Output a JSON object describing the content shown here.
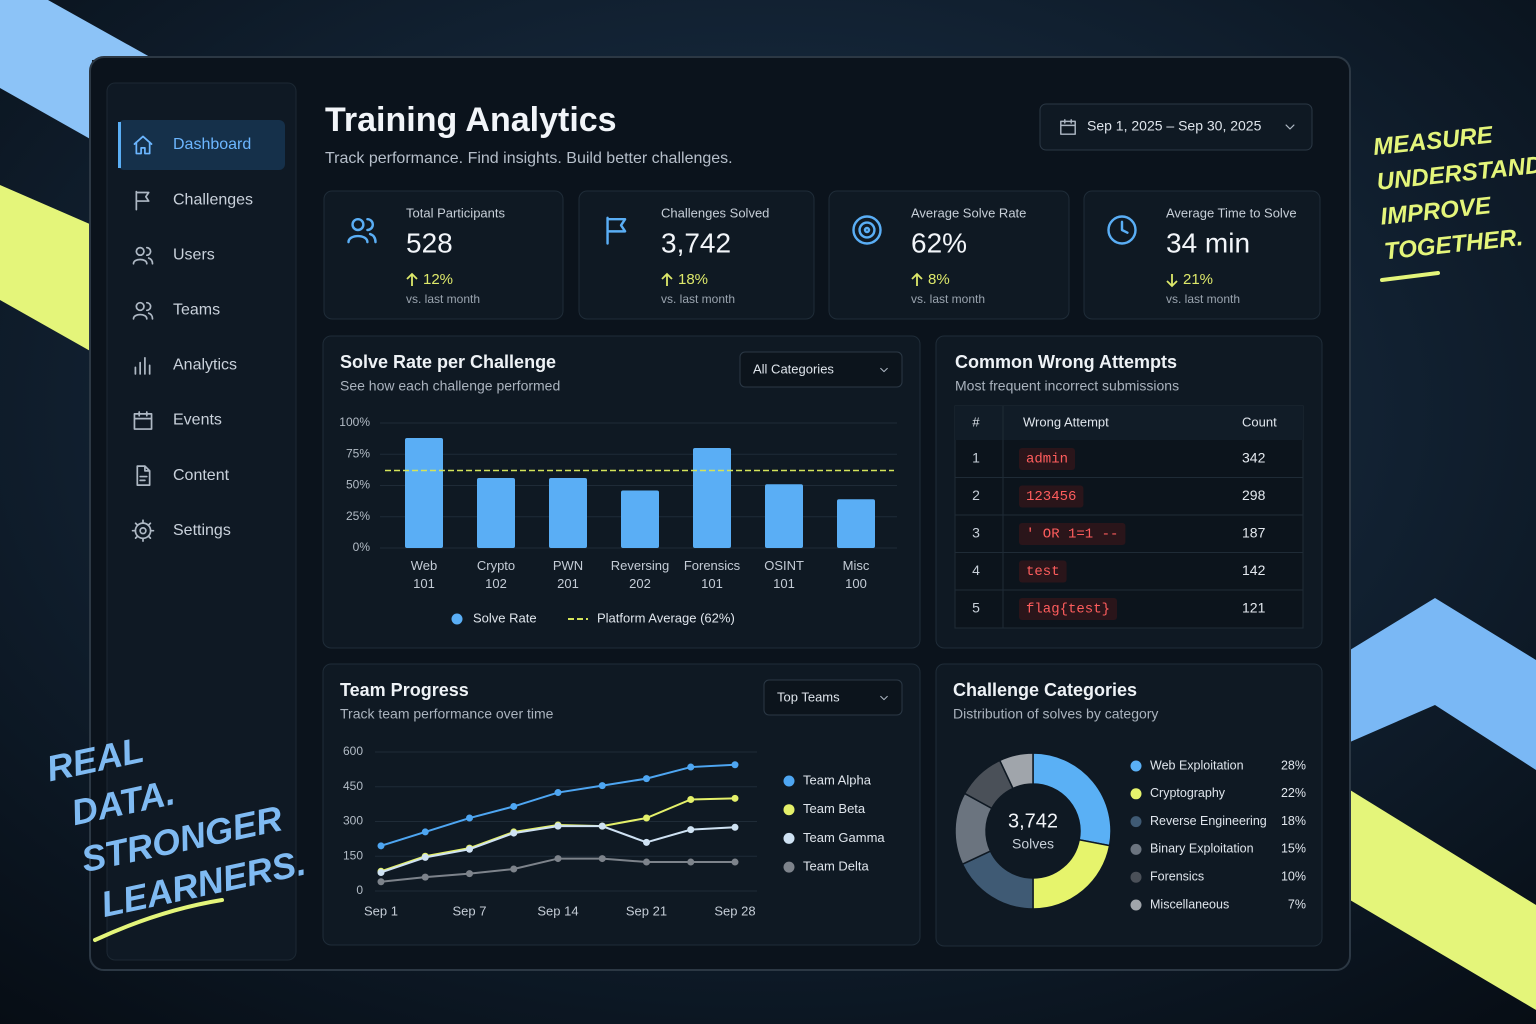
{
  "decor": {
    "slogan_left": [
      "REAL",
      "DATA.",
      "STRONGER",
      "LEARNERS."
    ],
    "slogan_right": [
      "MEASURE",
      "UNDERSTAND",
      "IMPROVE",
      "TOGETHER."
    ]
  },
  "sidebar": {
    "items": [
      "Dashboard",
      "Challenges",
      "Users",
      "Teams",
      "Analytics",
      "Events",
      "Content",
      "Settings"
    ],
    "active": 0
  },
  "header": {
    "title": "Training Analytics",
    "subtitle": "Track performance. Find insights. Build better challenges.",
    "date_range": "Sep 1, 2025 – Sep 30, 2025"
  },
  "kpis": [
    {
      "label": "Total Participants",
      "value": "528",
      "change": "12%",
      "trend": "up",
      "note": "vs. last month"
    },
    {
      "label": "Challenges Solved",
      "value": "3,742",
      "change": "18%",
      "trend": "up",
      "note": "vs. last month"
    },
    {
      "label": "Average Solve Rate",
      "value": "62%",
      "change": "8%",
      "trend": "up",
      "note": "vs. last month"
    },
    {
      "label": "Average Time to Solve",
      "value": "34 min",
      "change": "21%",
      "trend": "down",
      "note": "vs. last month"
    }
  ],
  "wrong_attempts": {
    "title": "Common Wrong Attempts",
    "subtitle": "Most frequent incorrect submissions",
    "columns": [
      "#",
      "Wrong Attempt",
      "Count"
    ],
    "rows": [
      [
        1,
        "admin",
        342
      ],
      [
        2,
        "123456",
        298
      ],
      [
        3,
        "' OR 1=1 --",
        187
      ],
      [
        4,
        "test",
        142
      ],
      [
        5,
        "flag{test}",
        121
      ]
    ]
  },
  "chart_data": [
    {
      "type": "bar",
      "title": "Solve Rate per Challenge",
      "subtitle": "See how each challenge performed",
      "filter": "All Categories",
      "categories": [
        "Web 101",
        "Crypto 102",
        "PWN 201",
        "Reversing 202",
        "Forensics 101",
        "OSINT 101",
        "Misc 100"
      ],
      "series": [
        {
          "name": "Solve Rate",
          "color": "#5aaef5",
          "values": [
            88,
            56,
            56,
            46,
            80,
            51,
            39
          ]
        }
      ],
      "reference_line": {
        "name": "Platform Average (62%)",
        "value": 62,
        "color": "#d4e35a"
      },
      "ylim": [
        0,
        100
      ],
      "yticks": [
        {
          "value": 0,
          "label": "0%"
        },
        {
          "value": 25,
          "label": "25%"
        },
        {
          "value": 50,
          "label": "50%"
        },
        {
          "value": 75,
          "label": "75%"
        },
        {
          "value": 100,
          "label": "100%"
        }
      ],
      "grid": true
    },
    {
      "type": "line",
      "title": "Team Progress",
      "subtitle": "Track team performance over time",
      "filter": "Top Teams",
      "categories": [
        "Sep 1",
        null,
        "Sep 7",
        null,
        "Sep 14",
        null,
        "Sep 21",
        null,
        "Sep 28"
      ],
      "series": [
        {
          "name": "Team Alpha",
          "color": "#4ea6f2",
          "values": [
            195,
            255,
            315,
            365,
            425,
            455,
            485,
            535,
            545
          ]
        },
        {
          "name": "Team Beta",
          "color": "#e4f06a",
          "values": [
            85,
            150,
            185,
            255,
            285,
            280,
            315,
            395,
            400
          ]
        },
        {
          "name": "Team Gamma",
          "color": "#cfe2f3",
          "values": [
            80,
            145,
            180,
            250,
            280,
            280,
            210,
            265,
            275
          ]
        },
        {
          "name": "Team Delta",
          "color": "#7d838b",
          "values": [
            40,
            60,
            75,
            95,
            140,
            140,
            125,
            125,
            125
          ]
        }
      ],
      "ylim": [
        0,
        600
      ],
      "yticks": [
        0,
        150,
        300,
        450,
        600
      ],
      "grid": true,
      "legend": "right"
    },
    {
      "type": "pie",
      "title": "Challenge Categories",
      "subtitle": "Distribution of solves by category",
      "center_value": "3,742",
      "center_label": "Solves",
      "donut": true,
      "legend": "right",
      "categories": [
        "Web Exploitation",
        "Cryptography",
        "Reverse Engineering",
        "Binary Exploitation",
        "Forensics",
        "Miscellaneous"
      ],
      "values": [
        28,
        22,
        18,
        15,
        10,
        7
      ],
      "value_labels": [
        "28%",
        "22%",
        "18%",
        "15%",
        "10%",
        "7%"
      ],
      "colors": [
        "#5ab0f5",
        "#e6f46c",
        "#3f5a74",
        "#6b747f",
        "#4a5058",
        "#a0a5ab"
      ]
    }
  ]
}
